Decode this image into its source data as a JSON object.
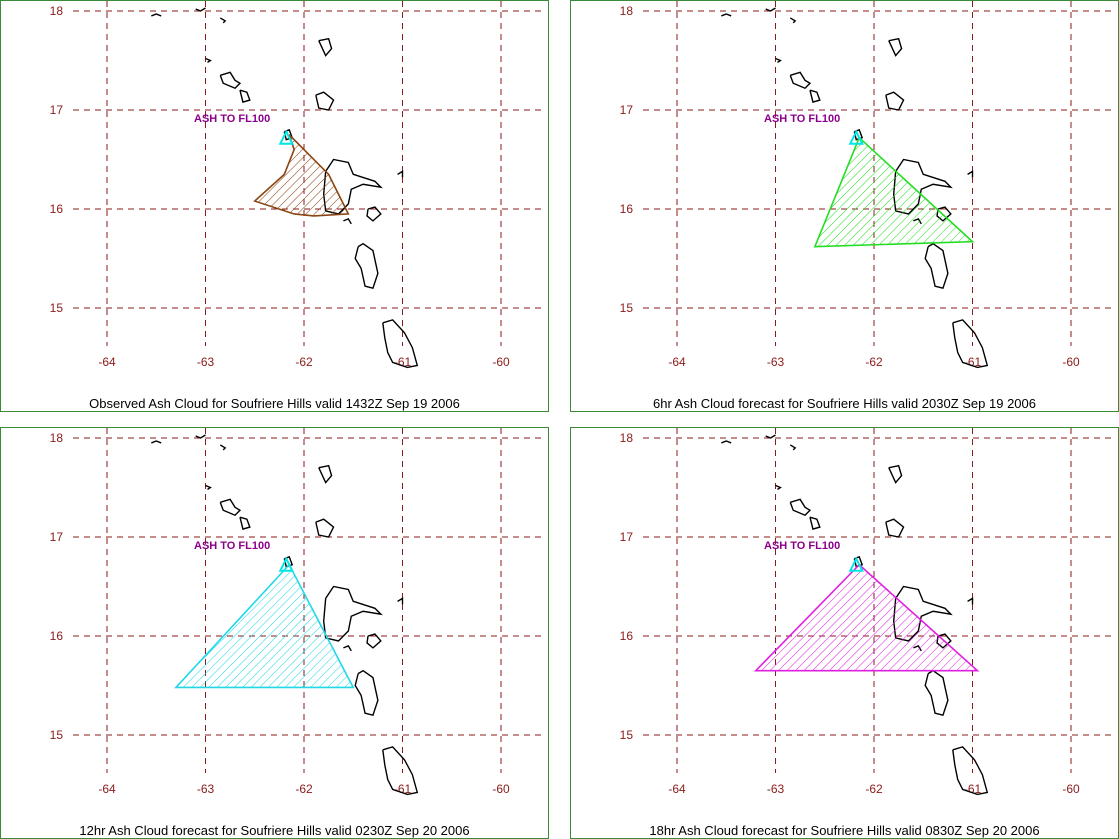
{
  "map": {
    "lon_ticks": [
      "-64",
      "-63",
      "-62",
      "-61",
      "-60"
    ],
    "lat_ticks": [
      "18",
      "17",
      "16",
      "15"
    ],
    "grid_color": "#8b1a1a",
    "coast_color": "#000000",
    "volcano_color": "#00e5e5"
  },
  "panels": [
    {
      "id": "observed",
      "caption": "Observed Ash Cloud for Soufriere  Hills valid 1432Z Sep 19 2006",
      "label": "ASH TO FL100",
      "cloud_color": "#8b4513",
      "cloud": [
        [
          -62.15,
          16.75
        ],
        [
          -61.95,
          16.55
        ],
        [
          -61.75,
          16.35
        ],
        [
          -61.55,
          15.95
        ],
        [
          -61.9,
          15.93
        ],
        [
          -62.1,
          15.95
        ],
        [
          -62.5,
          16.08
        ],
        [
          -62.2,
          16.35
        ],
        [
          -62.1,
          16.6
        ]
      ]
    },
    {
      "id": "forecast-6hr",
      "caption": "6hr Ash Cloud forecast for Soufriere  Hills valid 2030Z Sep 19 2006",
      "label": "ASH TO FL100",
      "cloud_color": "#22dd22",
      "cloud": [
        [
          -62.15,
          16.72
        ],
        [
          -61.0,
          15.67
        ],
        [
          -62.6,
          15.62
        ]
      ]
    },
    {
      "id": "forecast-12hr",
      "caption": "12hr Ash Cloud forecast for Soufriere  Hills valid 0230Z Sep 20 2006",
      "label": "ASH TO FL100",
      "cloud_color": "#22d8e8",
      "cloud": [
        [
          -62.15,
          16.72
        ],
        [
          -61.5,
          15.48
        ],
        [
          -63.3,
          15.48
        ]
      ]
    },
    {
      "id": "forecast-18hr",
      "caption": "18hr Ash Cloud forecast for Soufriere  Hills valid 0830Z Sep 20 2006",
      "label": "ASH TO FL100",
      "cloud_color": "#e020e0",
      "cloud": [
        [
          -62.15,
          16.72
        ],
        [
          -60.95,
          15.65
        ],
        [
          -63.2,
          15.65
        ]
      ]
    }
  ]
}
